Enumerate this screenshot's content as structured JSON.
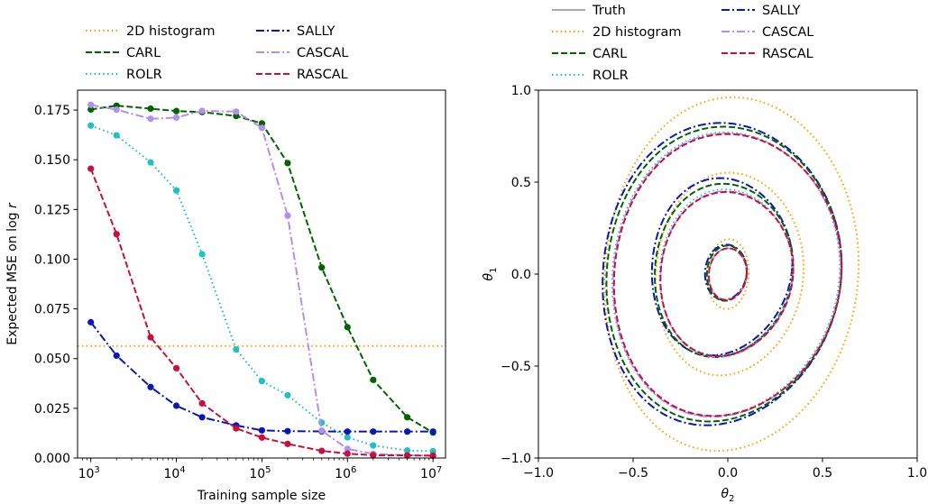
{
  "chart_data": [
    {
      "type": "line",
      "x_scale": "log",
      "xlabel": "Training sample size",
      "ylabel": "Expected MSE on log r",
      "xlim": [
        700,
        14000000
      ],
      "ylim": [
        0,
        0.185
      ],
      "x_ticks": [
        {
          "value": 1000,
          "base": "10",
          "exp": "3"
        },
        {
          "value": 10000,
          "base": "10",
          "exp": "4"
        },
        {
          "value": 100000,
          "base": "10",
          "exp": "5"
        },
        {
          "value": 1000000,
          "base": "10",
          "exp": "6"
        },
        {
          "value": 10000000,
          "base": "10",
          "exp": "7"
        }
      ],
      "y_ticks": [
        {
          "value": 0,
          "label": "0.000"
        },
        {
          "value": 0.025,
          "label": "0.025"
        },
        {
          "value": 0.05,
          "label": "0.050"
        },
        {
          "value": 0.075,
          "label": "0.075"
        },
        {
          "value": 0.1,
          "label": "0.100"
        },
        {
          "value": 0.125,
          "label": "0.125"
        },
        {
          "value": 0.15,
          "label": "0.150"
        },
        {
          "value": 0.175,
          "label": "0.175"
        }
      ],
      "legend_placement": "top, above plot, two columns",
      "reference_lines": [
        {
          "name": "2D histogram",
          "y": 0.0563,
          "color": "#ffa500",
          "dash": "dotted"
        }
      ],
      "x": [
        1000,
        2000,
        5000,
        10000,
        20000,
        50000,
        100000,
        200000,
        500000,
        1000000,
        2000000,
        5000000,
        10000000
      ],
      "series": [
        {
          "name": "CARL",
          "color": "#006400",
          "dash": "dashed",
          "values": [
            0.1753,
            0.1772,
            0.1757,
            0.1745,
            0.174,
            0.172,
            0.1683,
            0.1483,
            0.0958,
            0.0658,
            0.0393,
            0.0205,
            0.0128
          ]
        },
        {
          "name": "ROLR",
          "color": "#1fc0c6",
          "dash": "dotted",
          "values": [
            0.1672,
            0.1623,
            0.1487,
            0.1346,
            0.1025,
            0.0546,
            0.0387,
            0.0316,
            0.0178,
            0.0104,
            0.0063,
            0.0038,
            0.0034
          ]
        },
        {
          "name": "SALLY",
          "color": "#0a17b8",
          "dash": "dashdot",
          "values": [
            0.0683,
            0.0515,
            0.0357,
            0.0263,
            0.0205,
            0.0164,
            0.0139,
            0.0135,
            0.0134,
            0.0133,
            0.0133,
            0.0133,
            0.0133
          ]
        },
        {
          "name": "CASCAL",
          "color": "#b38fee",
          "dash": "dashdot",
          "values": [
            0.1776,
            0.1752,
            0.1706,
            0.1712,
            0.1746,
            0.1742,
            0.166,
            0.1219,
            0.0138,
            0.0046,
            0.0021,
            0.0014,
            0.0012
          ]
        },
        {
          "name": "RASCAL",
          "color": "#c8103c",
          "dash": "dashed",
          "values": [
            0.1455,
            0.1126,
            0.0607,
            0.0452,
            0.0275,
            0.0149,
            0.0103,
            0.0071,
            0.0036,
            0.0022,
            0.0014,
            0.0013,
            0.0012
          ]
        }
      ]
    },
    {
      "type": "contour",
      "xlabel": "θ",
      "xlabel_sub": "2",
      "ylabel": "θ",
      "ylabel_sub": "1",
      "xlim": [
        -1.0,
        1.0
      ],
      "ylim": [
        -1.0,
        1.0
      ],
      "x_ticks": [
        {
          "value": -1.0,
          "label": "−1.0"
        },
        {
          "value": -0.5,
          "label": "−0.5"
        },
        {
          "value": 0.0,
          "label": "0.0"
        },
        {
          "value": 0.5,
          "label": "0.5"
        },
        {
          "value": 1.0,
          "label": "1.0"
        }
      ],
      "y_ticks": [
        {
          "value": -1.0,
          "label": "−1.0"
        },
        {
          "value": -0.5,
          "label": "−0.5"
        },
        {
          "value": 0.0,
          "label": "0.0"
        },
        {
          "value": 0.5,
          "label": "0.5"
        },
        {
          "value": 1.0,
          "label": "1.0"
        }
      ],
      "legend_placement": "top, above plot, two columns",
      "legend": [
        {
          "name": "Truth",
          "color": "#aaaaaa",
          "dash": "solid"
        },
        {
          "name": "2D histogram",
          "color": "#ffa500",
          "dash": "dotted"
        },
        {
          "name": "CARL",
          "color": "#006400",
          "dash": "dashed"
        },
        {
          "name": "ROLR",
          "color": "#1fc0c6",
          "dash": "dotted"
        },
        {
          "name": "SALLY",
          "color": "#0a17b8",
          "dash": "dashdot"
        },
        {
          "name": "CASCAL",
          "color": "#b38fee",
          "dash": "dashdot"
        },
        {
          "name": "RASCAL",
          "color": "#c8103c",
          "dash": "dashed"
        }
      ],
      "contours": [
        {
          "series": "2D histogram",
          "color": "#ffa500",
          "dash": "dotted",
          "width": 2,
          "levels": [
            {
              "cx": 0.0,
              "cy": 0.0,
              "rx": 0.11,
              "ry": 0.19,
              "tilt": 0.0
            },
            {
              "cx": 0.01,
              "cy": 0.0,
              "rx": 0.39,
              "ry": 0.55,
              "tilt": -0.4
            },
            {
              "cx": 0.02,
              "cy": 0.0,
              "rx": 0.67,
              "ry": 0.96,
              "tilt": -0.3
            }
          ]
        },
        {
          "series": "SALLY",
          "color": "#0a17b8",
          "dash": "dashdot",
          "width": 2,
          "levels": [
            {
              "cx": -0.01,
              "cy": 0.01,
              "rx": 0.11,
              "ry": 0.15,
              "tilt": -0.2
            },
            {
              "cx": -0.03,
              "cy": 0.04,
              "rx": 0.37,
              "ry": 0.48,
              "tilt": -0.5
            },
            {
              "cx": -0.03,
              "cy": 0.0,
              "rx": 0.63,
              "ry": 0.82,
              "tilt": -0.4
            }
          ]
        },
        {
          "series": "CARL",
          "color": "#006400",
          "dash": "dashed",
          "width": 2,
          "levels": [
            {
              "cx": -0.005,
              "cy": 0.005,
              "rx": 0.105,
              "ry": 0.15,
              "tilt": -0.2
            },
            {
              "cx": -0.02,
              "cy": 0.02,
              "rx": 0.365,
              "ry": 0.47,
              "tilt": -0.4
            },
            {
              "cx": -0.02,
              "cy": 0.0,
              "rx": 0.62,
              "ry": 0.8,
              "tilt": -0.35
            }
          ]
        },
        {
          "series": "ROLR",
          "color": "#1fc0c6",
          "dash": "dotted",
          "width": 1.6,
          "levels": [
            {
              "cx": 0.0,
              "cy": 0.0,
              "rx": 0.1,
              "ry": 0.14,
              "tilt": -0.2
            },
            {
              "cx": -0.01,
              "cy": 0.01,
              "rx": 0.35,
              "ry": 0.45,
              "tilt": -0.4
            },
            {
              "cx": -0.01,
              "cy": 0.0,
              "rx": 0.6,
              "ry": 0.77,
              "tilt": -0.35
            }
          ]
        },
        {
          "series": "CASCAL",
          "color": "#b38fee",
          "dash": "dashdot",
          "width": 1.6,
          "levels": [
            {
              "cx": 0.0,
              "cy": 0.0,
              "rx": 0.1,
              "ry": 0.14,
              "tilt": -0.2
            },
            {
              "cx": -0.005,
              "cy": 0.0,
              "rx": 0.35,
              "ry": 0.45,
              "tilt": -0.4
            },
            {
              "cx": -0.005,
              "cy": -0.005,
              "rx": 0.6,
              "ry": 0.77,
              "tilt": -0.35
            }
          ]
        },
        {
          "series": "RASCAL",
          "color": "#c8103c",
          "dash": "dashed",
          "width": 2,
          "levels": [
            {
              "cx": 0.0,
              "cy": 0.0,
              "rx": 0.1,
              "ry": 0.14,
              "tilt": -0.2
            },
            {
              "cx": -0.005,
              "cy": 0.0,
              "rx": 0.35,
              "ry": 0.445,
              "tilt": -0.4
            },
            {
              "cx": 0.0,
              "cy": -0.005,
              "rx": 0.6,
              "ry": 0.765,
              "tilt": -0.35
            }
          ]
        }
      ]
    }
  ]
}
